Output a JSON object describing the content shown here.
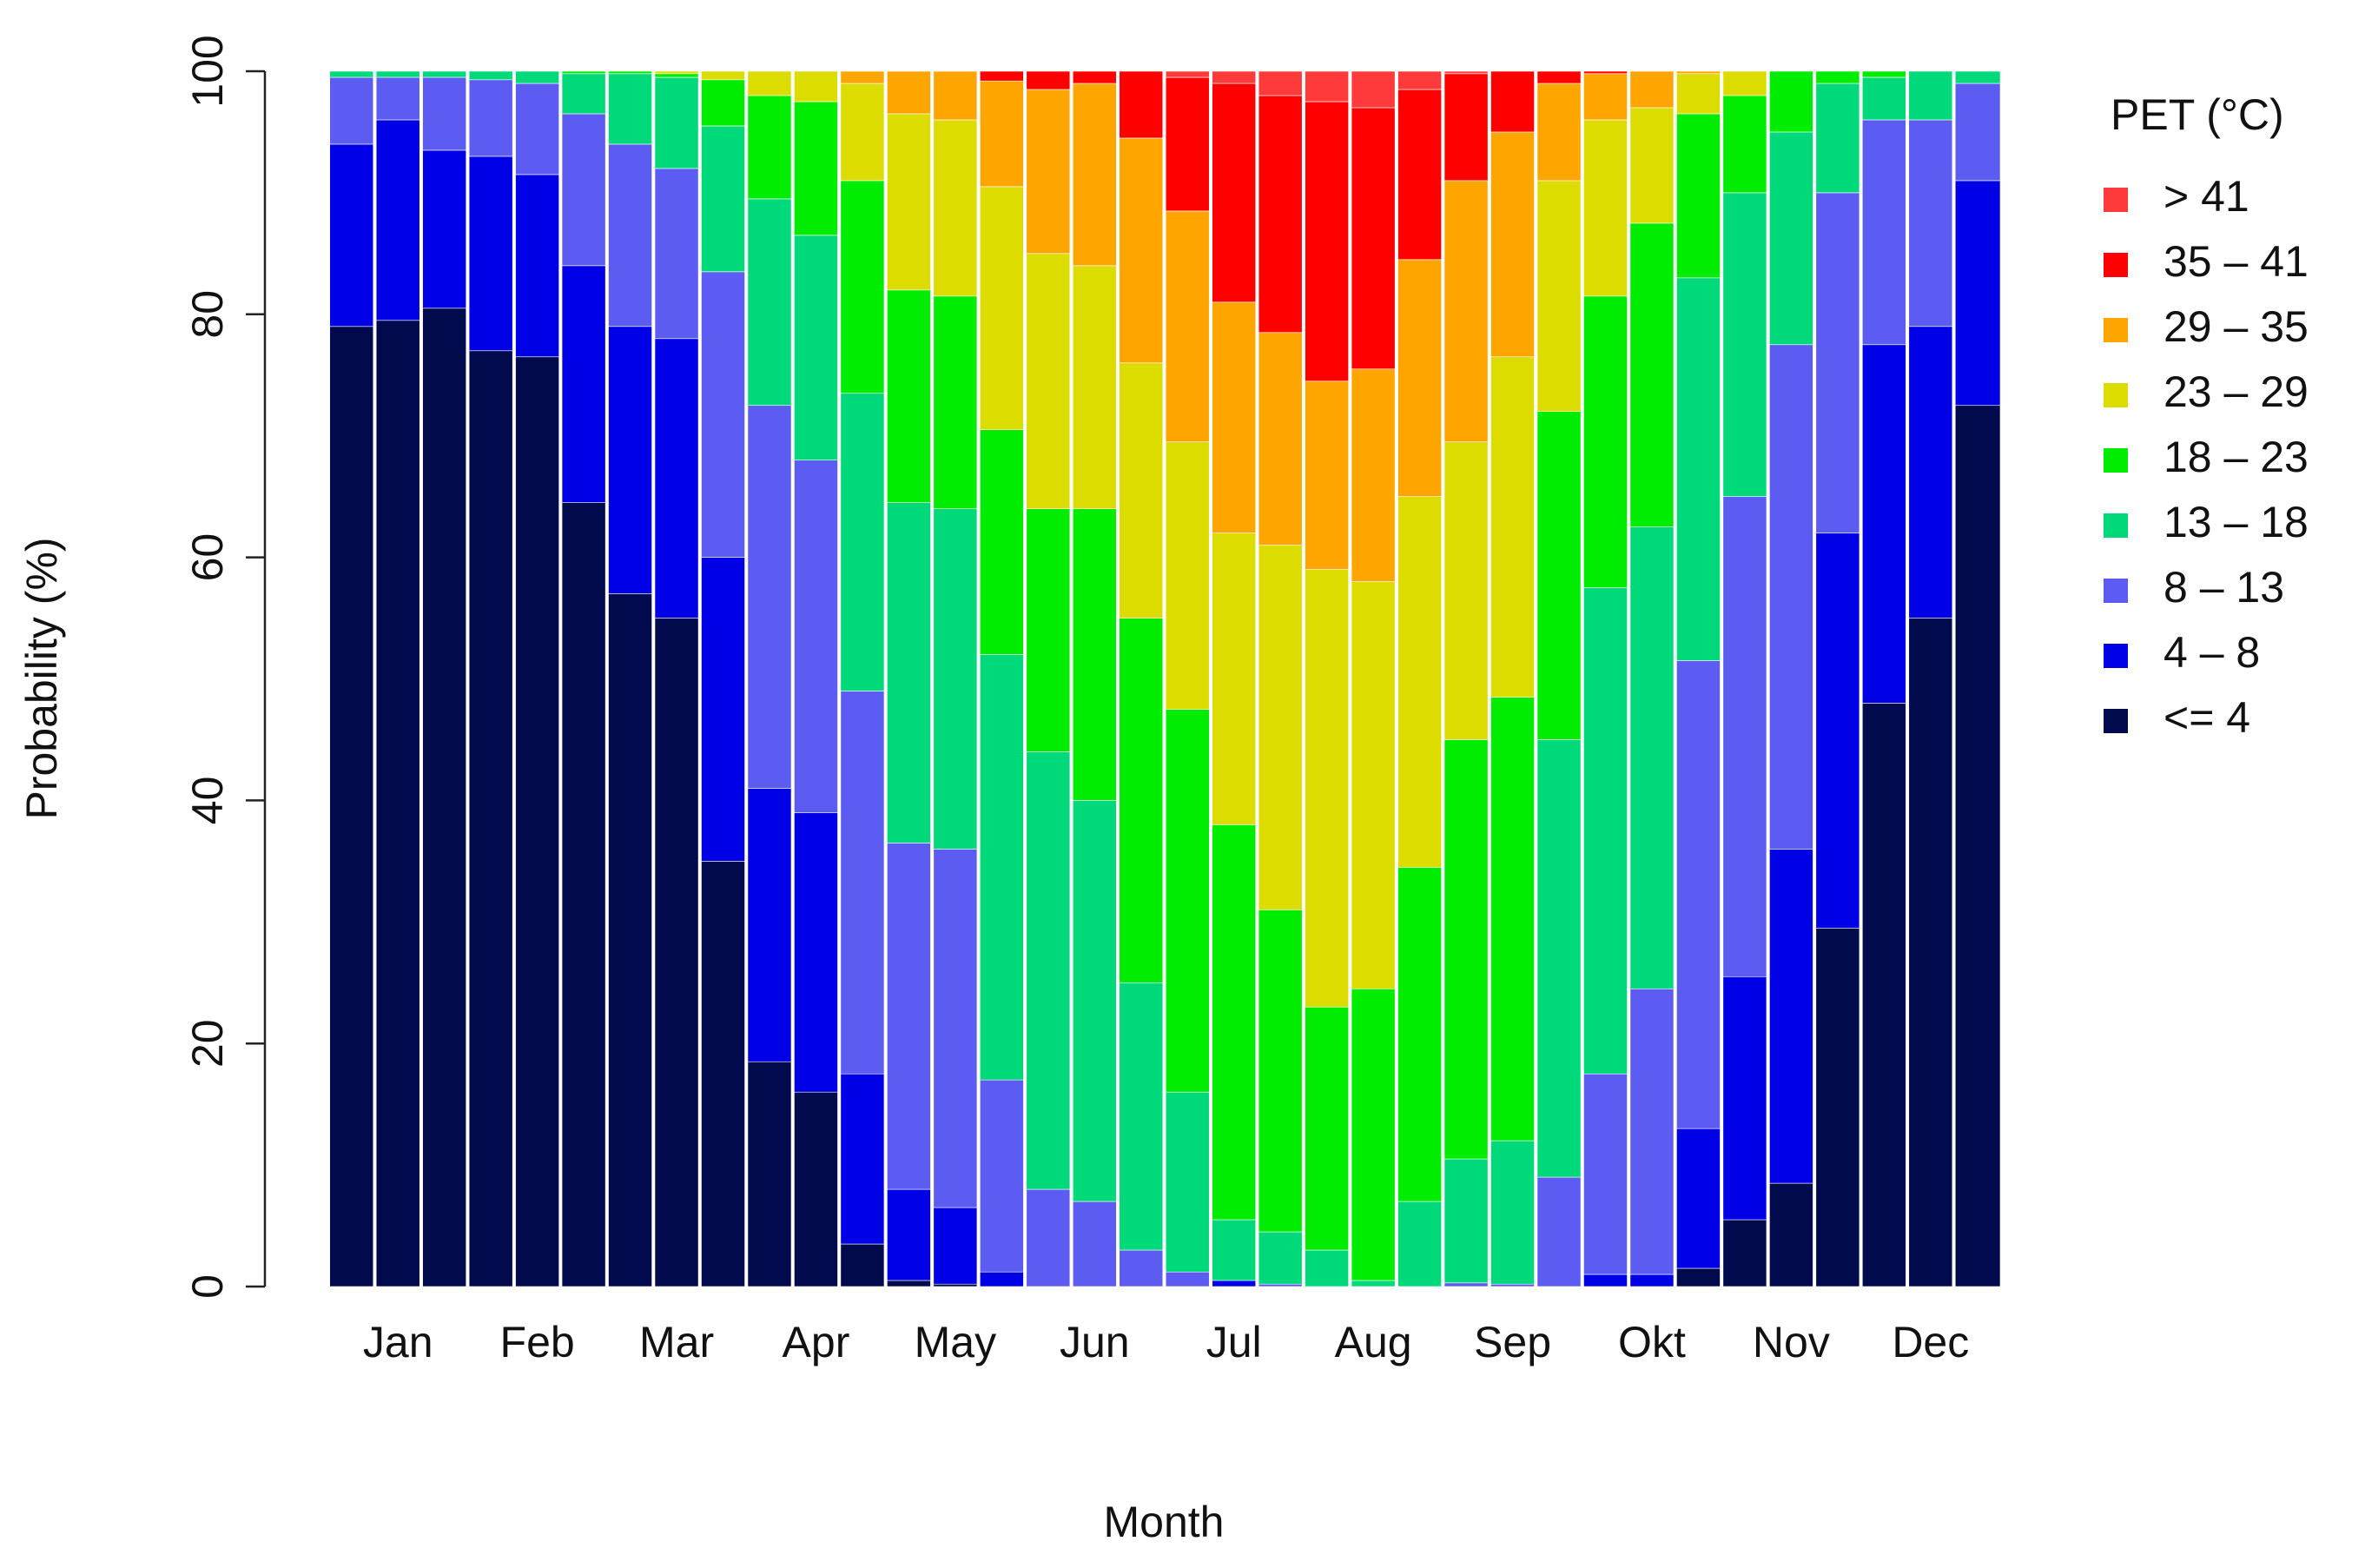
{
  "chart_data": {
    "type": "stacked_bar",
    "x_label": "Month",
    "y_label": "Probability (%)",
    "legend_title": "PET (°C)",
    "legend": "right",
    "categories": [
      null,
      "Jan",
      null,
      null,
      "Feb",
      null,
      null,
      "Mar",
      null,
      null,
      "Apr",
      null,
      null,
      "May",
      null,
      null,
      "Jun",
      null,
      null,
      "Jul",
      null,
      null,
      "Aug",
      null,
      null,
      "Sep",
      null,
      null,
      "Okt",
      null,
      null,
      "Nov",
      null,
      null,
      "Dec",
      null
    ],
    "ylim": [
      0,
      100
    ],
    "yticks": [
      0,
      20,
      40,
      60,
      80,
      100
    ],
    "series": [
      {
        "name": "<= 4",
        "color": "#000a4c",
        "values": [
          79,
          79.5,
          80.5,
          77,
          76.5,
          64.5,
          57,
          55,
          35,
          18.5,
          16,
          3.5,
          0.5,
          0.2,
          0,
          0,
          0,
          0,
          0,
          0,
          0,
          0,
          0,
          0,
          0,
          0,
          0,
          0,
          0,
          1.5,
          5.5,
          8.5,
          29.5,
          48,
          55,
          72.5
        ]
      },
      {
        "name": "4 – 8",
        "color": "#0000e6",
        "values": [
          15,
          16.5,
          13,
          16,
          15,
          19.5,
          22,
          23,
          25,
          22.5,
          23,
          14,
          7.5,
          6.3,
          1.2,
          0,
          0,
          0,
          0,
          0.5,
          0,
          0,
          0,
          0,
          0,
          0,
          0,
          1,
          1,
          11.5,
          20,
          27.5,
          32.5,
          29.5,
          24,
          18.5
        ]
      },
      {
        "name": "8 – 13",
        "color": "#5c5cf2",
        "values": [
          5.5,
          3.5,
          6,
          6.3,
          7.5,
          12.5,
          15,
          14,
          23.5,
          31.5,
          29,
          31.5,
          28.5,
          29.5,
          15.8,
          8,
          7,
          3,
          1.2,
          0,
          0.2,
          0,
          0,
          0,
          0.3,
          0.2,
          9,
          16.5,
          23.5,
          38.5,
          39.5,
          41.5,
          28,
          18.5,
          17,
          8
        ]
      },
      {
        "name": "13 – 18",
        "color": "#00d97a",
        "values": [
          0.5,
          0.5,
          0.5,
          0.7,
          1,
          3.3,
          5.8,
          7.5,
          12,
          17,
          18.5,
          24.5,
          28,
          28,
          35,
          36,
          33,
          22,
          14.8,
          5,
          4.3,
          3,
          0.5,
          7,
          10.2,
          11.8,
          36,
          40,
          38,
          31.5,
          25,
          17.5,
          9,
          3.5,
          4,
          1
        ]
      },
      {
        "name": "18 – 23",
        "color": "#00ec00",
        "values": [
          0,
          0,
          0,
          0,
          0,
          0.2,
          0.2,
          0.3,
          3.8,
          8.5,
          11,
          17.5,
          17.5,
          17.5,
          18.5,
          20,
          24,
          30,
          31.5,
          32.5,
          26.5,
          20,
          24,
          27.5,
          34.5,
          36.5,
          27,
          24,
          25,
          13.5,
          8,
          5,
          1,
          0.5,
          0,
          0
        ]
      },
      {
        "name": "23 – 29",
        "color": "#dcdc00",
        "values": [
          0,
          0,
          0,
          0,
          0,
          0,
          0,
          0.2,
          0.7,
          2,
          2.5,
          8,
          14.5,
          14.5,
          20,
          21,
          20,
          21,
          22,
          24,
          30,
          36,
          33.5,
          30.5,
          24.5,
          28,
          19,
          14.5,
          9.5,
          3.3,
          2,
          0,
          0,
          0,
          0,
          0
        ]
      },
      {
        "name": "29 – 35",
        "color": "#ffa500",
        "values": [
          0,
          0,
          0,
          0,
          0,
          0,
          0,
          0,
          0,
          0,
          0,
          1,
          3.5,
          4,
          8.7,
          13.5,
          15,
          18.5,
          19,
          19,
          17.5,
          15.5,
          17.5,
          19.5,
          21.5,
          18.5,
          8,
          3.8,
          3,
          0.2,
          0,
          0,
          0,
          0,
          0,
          0
        ]
      },
      {
        "name": "35 – 41",
        "color": "#ff0000",
        "values": [
          0,
          0,
          0,
          0,
          0,
          0,
          0,
          0,
          0,
          0,
          0,
          0,
          0,
          0,
          0.8,
          1.5,
          1,
          5.5,
          11,
          18,
          19.5,
          23,
          21.5,
          14,
          8.8,
          5,
          1,
          0.2,
          0,
          0,
          0,
          0,
          0,
          0,
          0,
          0
        ]
      },
      {
        "name": "> 41",
        "color": "#ff3a3a",
        "values": [
          0,
          0,
          0,
          0,
          0,
          0,
          0,
          0,
          0,
          0,
          0,
          0,
          0,
          0,
          0,
          0,
          0,
          0,
          0.5,
          1,
          2,
          2.5,
          3,
          1.5,
          0.2,
          0,
          0,
          0,
          0,
          0,
          0,
          0,
          0,
          0,
          0,
          0
        ]
      }
    ]
  }
}
